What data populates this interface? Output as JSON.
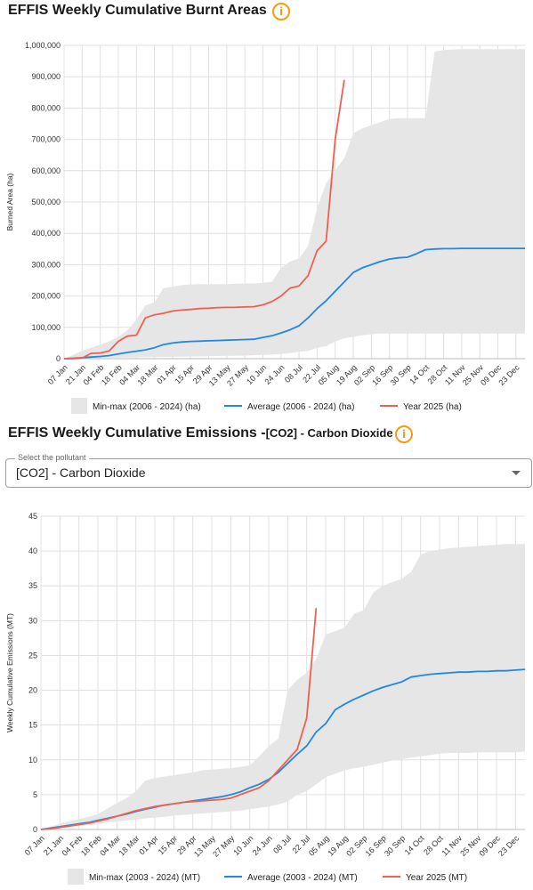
{
  "chart_data": [
    {
      "type": "line",
      "title": "EFFIS Weekly Cumulative Burnt Areas",
      "ylabel": "Burned Area (ha)",
      "xlabel": "",
      "ylim": [
        0,
        1000000
      ],
      "yticks": [
        0,
        100000,
        200000,
        300000,
        400000,
        500000,
        600000,
        700000,
        800000,
        900000,
        1000000
      ],
      "ytick_labels": [
        "0",
        "100,000",
        "200,000",
        "300,000",
        "400,000",
        "500,000",
        "600,000",
        "700,000",
        "800,000",
        "900,000",
        "1,000,000"
      ],
      "x_tick_labels": [
        "07 Jan",
        "21 Jan",
        "04 Feb",
        "18 Feb",
        "04 Mar",
        "18 Mar",
        "01 Apr",
        "15 Apr",
        "29 Apr",
        "13 May",
        "27 May",
        "10 Jun",
        "24 Jun",
        "08 Jul",
        "22 Jul",
        "05 Aug",
        "19 Aug",
        "02 Sep",
        "16 Sep",
        "30 Sep",
        "14 Oct",
        "28 Oct",
        "11 Nov",
        "25 Nov",
        "09 Dec",
        "23 Dec"
      ],
      "weeks": 52,
      "legend_position": "bottom",
      "series": [
        {
          "name": "Min-max (2006 - 2024) (ha)",
          "kind": "band",
          "color": "#e6e6e6",
          "min": [
            0,
            500,
            1000,
            1500,
            2000,
            2500,
            3000,
            3500,
            4000,
            4500,
            5000,
            5500,
            6000,
            6500,
            7000,
            7500,
            8000,
            8500,
            9000,
            9500,
            10000,
            11000,
            12000,
            13000,
            15000,
            18000,
            22000,
            25000,
            35000,
            40000,
            55000,
            65000,
            70000,
            75000,
            78000,
            80000,
            80000,
            80000,
            80000,
            80000,
            80000,
            80000,
            80000,
            80000,
            80000,
            80000,
            80000,
            80000,
            80000,
            80000,
            80000,
            80000
          ],
          "max": [
            0,
            12000,
            25000,
            35000,
            45000,
            55000,
            70000,
            90000,
            125000,
            170000,
            180000,
            225000,
            230000,
            235000,
            237000,
            238000,
            238000,
            238000,
            238000,
            239000,
            240000,
            240000,
            243000,
            245000,
            290000,
            310000,
            320000,
            360000,
            480000,
            560000,
            600000,
            640000,
            720000,
            735000,
            745000,
            755000,
            765000,
            768000,
            768000,
            768000,
            768000,
            980000,
            985000,
            987000,
            988000,
            988000,
            988000,
            988000,
            988000,
            988000,
            988000,
            988000
          ]
        },
        {
          "name": "Average (2006 - 2024) (ha)",
          "kind": "line",
          "color": "#1e88e5",
          "values": [
            0,
            1500,
            3000,
            5000,
            7000,
            10000,
            15000,
            20000,
            24000,
            28000,
            35000,
            45000,
            50000,
            53000,
            55000,
            56000,
            57000,
            58000,
            59000,
            60000,
            61000,
            62000,
            68000,
            73000,
            82000,
            92000,
            105000,
            130000,
            160000,
            185000,
            215000,
            245000,
            275000,
            290000,
            300000,
            310000,
            318000,
            322000,
            324000,
            335000,
            348000,
            350000,
            351000,
            351000,
            352000,
            352000,
            352000,
            352000,
            352000,
            352000,
            352000,
            352000
          ]
        },
        {
          "name": "Year 2025 (ha)",
          "kind": "line",
          "color": "#f06050",
          "values": [
            0,
            0,
            2000,
            17000,
            18000,
            25000,
            55000,
            72000,
            75000,
            130000,
            140000,
            145000,
            152000,
            155000,
            157000,
            160000,
            161000,
            163000,
            163500,
            164000,
            165000,
            166000,
            172000,
            182000,
            200000,
            225000,
            232000,
            265000,
            345000,
            375000,
            700000,
            890000
          ]
        }
      ]
    },
    {
      "type": "line",
      "title": "EFFIS Weekly Cumulative Emissions -",
      "title_suffix": "[CO2] - Carbon Dioxide",
      "ylabel": "Weekly Cumulative Emissions (MT)",
      "xlabel": "",
      "ylim": [
        0,
        45
      ],
      "yticks": [
        0,
        5,
        10,
        15,
        20,
        25,
        30,
        35,
        40,
        45
      ],
      "ytick_labels": [
        "0",
        "5",
        "10",
        "15",
        "20",
        "25",
        "30",
        "35",
        "40",
        "45"
      ],
      "x_tick_labels": [
        "07 Jan",
        "21 Jan",
        "04 Feb",
        "18 Feb",
        "04 Mar",
        "18 Mar",
        "01 Apr",
        "15 Apr",
        "29 Apr",
        "13 May",
        "27 May",
        "10 Jun",
        "24 Jun",
        "08 Jul",
        "22 Jul",
        "05 Aug",
        "19 Aug",
        "02 Sep",
        "16 Sep",
        "30 Sep",
        "14 Oct",
        "28 Oct",
        "11 Nov",
        "25 Nov",
        "09 Dec",
        "23 Dec"
      ],
      "weeks": 52,
      "legend_position": "bottom",
      "series": [
        {
          "name": "Min-max (2003 - 2024) (MT)",
          "kind": "band",
          "color": "#e6e6e6",
          "min": [
            0,
            0.1,
            0.2,
            0.3,
            0.5,
            0.6,
            0.8,
            1.0,
            1.1,
            1.3,
            1.4,
            1.6,
            1.7,
            1.8,
            2.0,
            2.1,
            2.2,
            2.3,
            2.4,
            2.5,
            2.6,
            2.7,
            2.9,
            3.1,
            3.3,
            3.6,
            4.0,
            5.0,
            5.5,
            6.5,
            7.5,
            8.0,
            8.5,
            8.8,
            9.0,
            9.3,
            9.6,
            9.9,
            10.1,
            10.3,
            10.5,
            10.7,
            10.9,
            11.0,
            11.0,
            11.0,
            11.1,
            11.1,
            11.1,
            11.1,
            11.1,
            11.2
          ],
          "max": [
            0,
            0.4,
            0.8,
            1.2,
            1.5,
            1.8,
            2.2,
            3.0,
            3.8,
            4.5,
            5.5,
            7.0,
            7.4,
            7.6,
            7.8,
            8.0,
            8.2,
            8.5,
            8.6,
            8.7,
            8.8,
            9.0,
            9.2,
            10.5,
            12.0,
            13.0,
            20.0,
            21.5,
            22.5,
            24.5,
            28.0,
            28.5,
            29.0,
            31.0,
            31.5,
            34.0,
            35.0,
            35.5,
            36.0,
            37.0,
            39.5,
            40.0,
            40.2,
            40.4,
            40.5,
            40.6,
            40.7,
            40.8,
            40.9,
            41.0,
            41.0,
            41.0
          ]
        },
        {
          "name": "Average (2003 - 2024) (MT)",
          "kind": "line",
          "color": "#1e88e5",
          "values": [
            0,
            0.2,
            0.4,
            0.6,
            0.8,
            1.0,
            1.3,
            1.6,
            1.9,
            2.2,
            2.6,
            2.9,
            3.2,
            3.5,
            3.7,
            3.9,
            4.1,
            4.3,
            4.5,
            4.7,
            5.0,
            5.4,
            6.0,
            6.5,
            7.2,
            8.2,
            9.5,
            10.8,
            12.0,
            14.0,
            15.2,
            17.2,
            18.0,
            18.7,
            19.3,
            19.9,
            20.4,
            20.8,
            21.2,
            21.9,
            22.1,
            22.3,
            22.4,
            22.5,
            22.6,
            22.6,
            22.7,
            22.7,
            22.8,
            22.8,
            22.9,
            23.0
          ]
        },
        {
          "name": "Year 2025 (MT)",
          "kind": "line",
          "color": "#f06050",
          "values": [
            0,
            0.1,
            0.3,
            0.5,
            0.7,
            0.9,
            1.2,
            1.5,
            1.9,
            2.3,
            2.7,
            3.0,
            3.3,
            3.5,
            3.7,
            3.9,
            4.0,
            4.1,
            4.2,
            4.3,
            4.5,
            5.0,
            5.5,
            6.0,
            7.0,
            8.5,
            10.0,
            11.5,
            16.0,
            31.8
          ]
        }
      ]
    }
  ]
}
